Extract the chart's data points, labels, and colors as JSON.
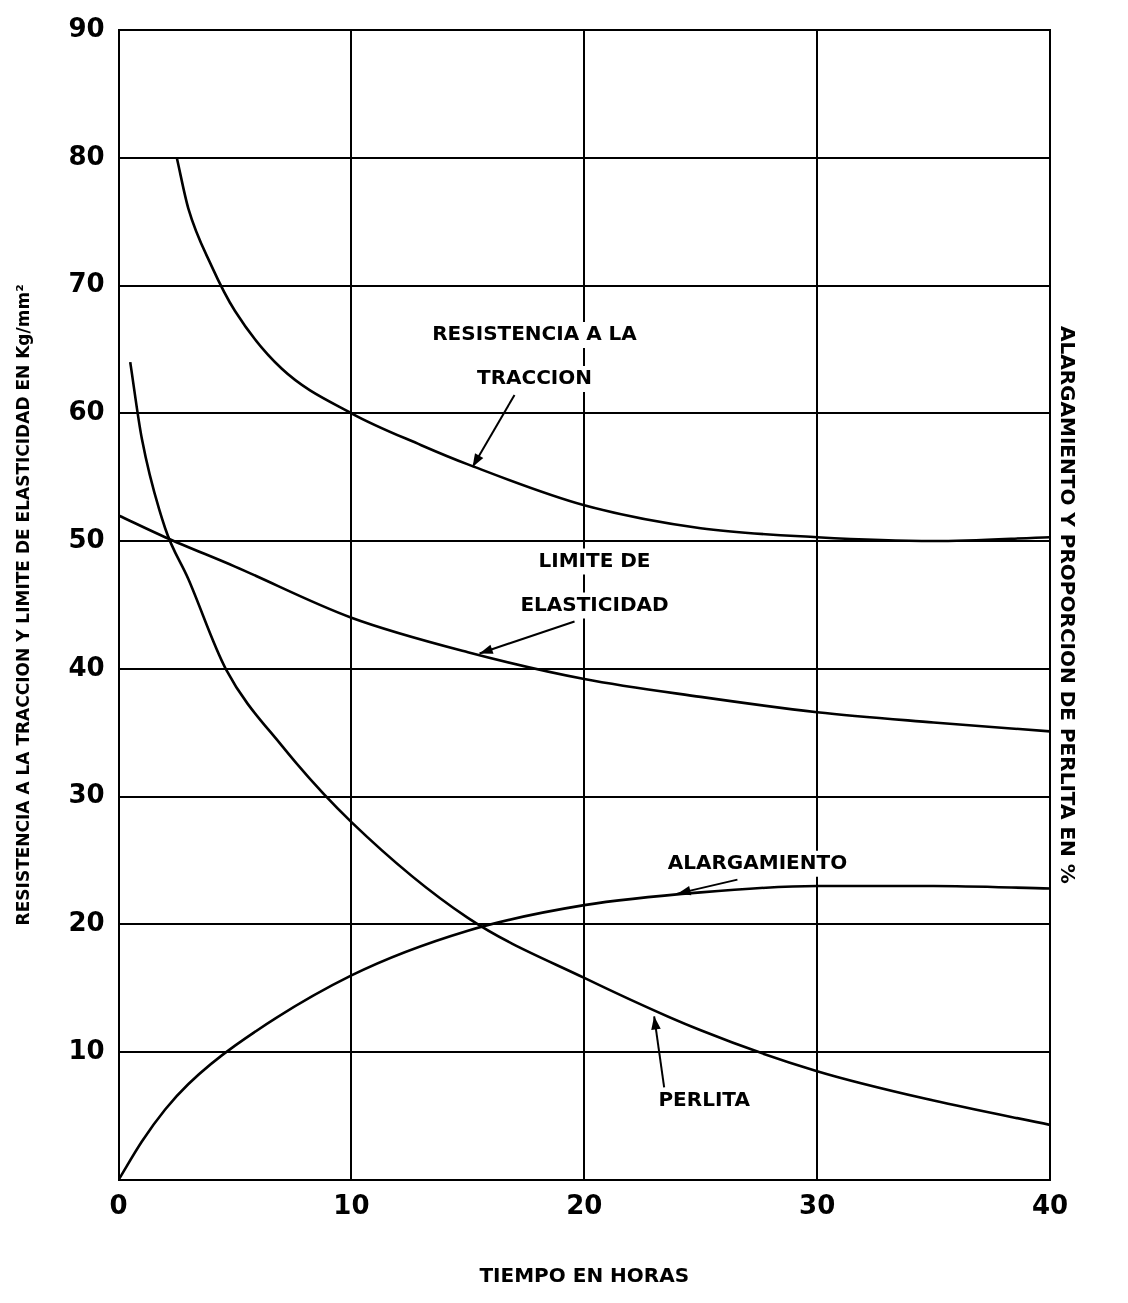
{
  "chart_data": {
    "type": "line",
    "xlabel": "TIEMPO EN HORAS",
    "ylabel": "RESISTENCIA A LA TRACCION Y LIMITE DE ELASTICIDAD EN Kg/mm²",
    "y2label": "ALARGAMIENTO Y PROPORCION DE PERLITA EN %",
    "xlim": [
      0,
      40
    ],
    "xticks": [
      0,
      10,
      20,
      30,
      40
    ],
    "ylim": [
      0,
      90
    ],
    "yticks": [
      {
        "value": 0,
        "label": null
      },
      10,
      20,
      30,
      40,
      50,
      60,
      70,
      80,
      90
    ],
    "grid": true,
    "legend": false,
    "marker": "none",
    "line_style": "solid",
    "series": [
      {
        "color": "#000000",
        "x": [
          2.5,
          3,
          4,
          5,
          7,
          10,
          13,
          15,
          20,
          25,
          30,
          35,
          40
        ],
        "values": [
          80,
          76,
          71.5,
          68,
          63.5,
          60,
          57.5,
          56,
          52.8,
          51,
          50.3,
          50,
          50.3
        ]
      },
      {
        "color": "#000000",
        "x": [
          0,
          2,
          5,
          10,
          15,
          20,
          25,
          30,
          35,
          40
        ],
        "values": [
          52,
          50.3,
          48,
          44,
          41.3,
          39.2,
          37.8,
          36.6,
          35.8,
          35.1
        ]
      },
      {
        "color": "#000000",
        "x": [
          0.5,
          1,
          2,
          3,
          4.6,
          7,
          10,
          15,
          20,
          25,
          30,
          35,
          40
        ],
        "values": [
          64,
          58,
          51,
          47,
          40,
          34,
          28,
          20.5,
          15.8,
          11.7,
          8.5,
          6.2,
          4.3
        ]
      },
      {
        "color": "#000000",
        "x": [
          0,
          1,
          2,
          3,
          5,
          10,
          15,
          20,
          25,
          30,
          35,
          40
        ],
        "values": [
          0,
          3,
          5.5,
          7.5,
          10.5,
          16,
          19.5,
          21.5,
          22.5,
          23,
          23,
          22.8
        ]
      }
    ],
    "annotations": [
      {
        "text": "RESISTENCIA A LA TRACCION",
        "x": 15.2,
        "y": 55.8
      },
      {
        "text": "LIMITE DE ELASTICIDAD",
        "x": 15.5,
        "y": 41.2
      },
      {
        "text": "ALARGAMIENTO",
        "x": 24,
        "y": 22.4
      },
      {
        "text": "PERLITA",
        "x": 23,
        "y": 12.8
      }
    ]
  }
}
